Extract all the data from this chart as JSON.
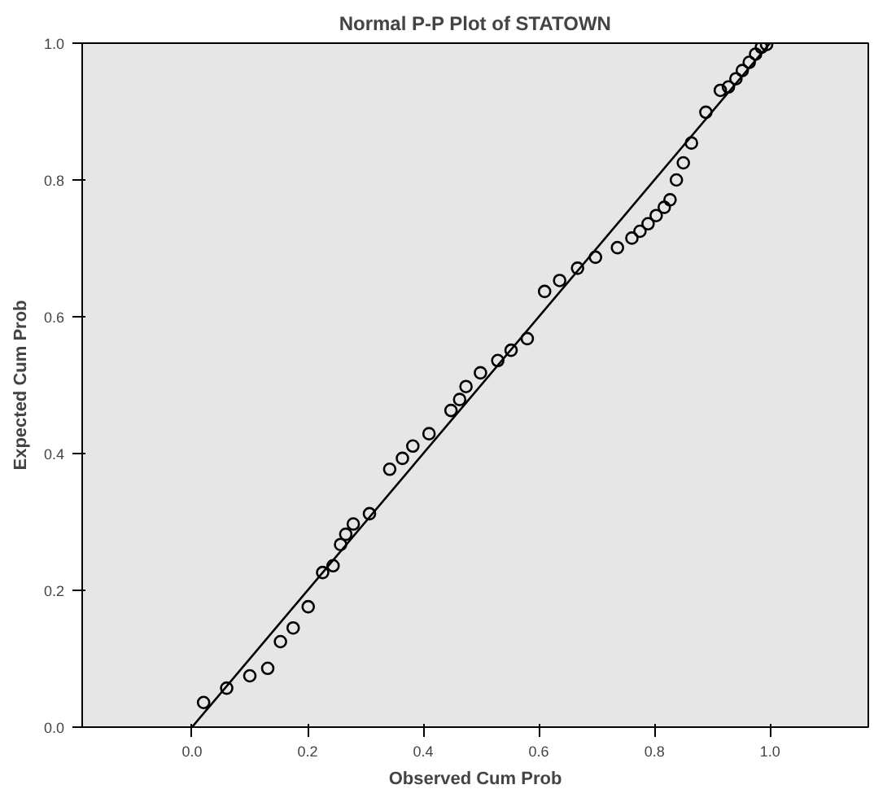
{
  "chart_data": {
    "type": "scatter",
    "title": "Normal P-P Plot of STATOWN",
    "xlabel": "Observed Cum Prob",
    "ylabel": "Expected Cum Prob",
    "xlim": [
      -0.19,
      1.17
    ],
    "ylim": [
      0,
      1
    ],
    "xticks": [
      {
        "value": 0,
        "label": "0.0"
      },
      {
        "value": 0.2,
        "label": "0.2"
      },
      {
        "value": 0.4,
        "label": "0.4"
      },
      {
        "value": 0.6,
        "label": "0.6"
      },
      {
        "value": 0.8,
        "label": "0.8"
      },
      {
        "value": 1,
        "label": "1.0"
      }
    ],
    "yticks": [
      {
        "value": 0,
        "label": "0.0"
      },
      {
        "value": 0.2,
        "label": "0.2"
      },
      {
        "value": 0.4,
        "label": "0.4"
      },
      {
        "value": 0.6,
        "label": "0.6"
      },
      {
        "value": 0.8,
        "label": "0.8"
      },
      {
        "value": 1,
        "label": "1.0"
      }
    ],
    "grid": false,
    "series": [
      {
        "marker": "circle",
        "color": "#000000",
        "x": [
          0.02,
          0.06,
          0.1,
          0.131,
          0.153,
          0.175,
          0.201,
          0.226,
          0.244,
          0.257,
          0.266,
          0.279,
          0.307,
          0.342,
          0.364,
          0.382,
          0.41,
          0.448,
          0.463,
          0.474,
          0.499,
          0.529,
          0.552,
          0.58,
          0.61,
          0.636,
          0.667,
          0.698,
          0.736,
          0.761,
          0.775,
          0.789,
          0.803,
          0.817,
          0.827,
          0.838,
          0.85,
          0.864,
          0.889,
          0.914,
          0.928,
          0.941,
          0.952,
          0.964,
          0.975,
          0.985,
          0.994
        ],
        "values": [
          0.036,
          0.057,
          0.075,
          0.086,
          0.125,
          0.145,
          0.176,
          0.226,
          0.236,
          0.267,
          0.282,
          0.297,
          0.312,
          0.377,
          0.393,
          0.411,
          0.429,
          0.463,
          0.479,
          0.498,
          0.518,
          0.536,
          0.551,
          0.568,
          0.637,
          0.653,
          0.671,
          0.687,
          0.701,
          0.715,
          0.725,
          0.736,
          0.748,
          0.76,
          0.771,
          0.8,
          0.825,
          0.854,
          0.899,
          0.931,
          0.936,
          0.948,
          0.96,
          0.972,
          0.984,
          0.994,
          0.998
        ]
      },
      {
        "type": "line",
        "marker": "none",
        "color": "#000000",
        "x": [
          0,
          1
        ],
        "values": [
          0,
          1
        ]
      }
    ]
  }
}
